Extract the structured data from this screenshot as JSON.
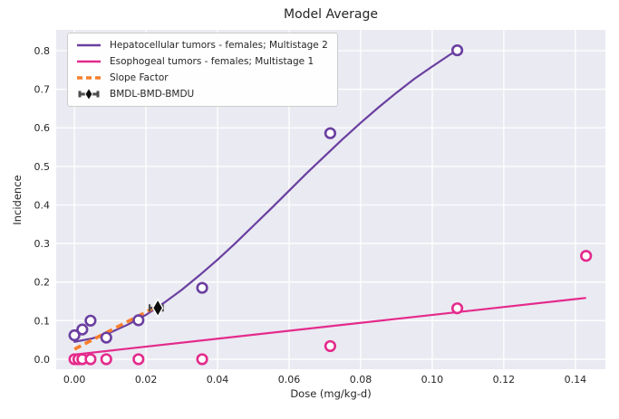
{
  "title": "Model Average",
  "axes": {
    "xlabel": "Dose (mg/kg-d)",
    "ylabel": "Incidence"
  },
  "colors": {
    "hepatocellular": "#6a3fa0",
    "esophogeal": "#e42a8c",
    "slope_factor": "#f87f2c",
    "bmd_diamond": "#0d0d0d",
    "bmd_bar": "#4d4d4d",
    "plot_background": "#eaeaf2",
    "gridline": "#ffffff",
    "text": "#262626"
  },
  "chart_data": {
    "type": "line",
    "title": "Model Average",
    "xlabel": "Dose (mg/kg-d)",
    "ylabel": "Incidence",
    "xlim": [
      -0.0051,
      0.1484
    ],
    "ylim": [
      -0.026,
      0.854
    ],
    "grid": true,
    "legend_position": "upper-left",
    "x_tick_values": [
      0.0,
      0.02,
      0.04,
      0.06,
      0.08,
      0.1,
      0.12,
      0.14
    ],
    "x_tick_labels": [
      "0.00",
      "0.02",
      "0.04",
      "0.06",
      "0.08",
      "0.10",
      "0.12",
      "0.14"
    ],
    "y_tick_values": [
      0.0,
      0.1,
      0.2,
      0.3,
      0.4,
      0.5,
      0.6,
      0.7,
      0.8
    ],
    "y_tick_labels": [
      "0.0",
      "0.1",
      "0.2",
      "0.3",
      "0.4",
      "0.5",
      "0.6",
      "0.7",
      "0.8"
    ],
    "series": [
      {
        "name": "Hepatocellular tumors - females; Multistage 2",
        "color": "#6a3fa0",
        "marker": "open-circle",
        "points": [
          [
            0.0,
            0.062
          ],
          [
            0.0022,
            0.077
          ],
          [
            0.0045,
            0.1
          ],
          [
            0.0089,
            0.056
          ],
          [
            0.0179,
            0.101
          ],
          [
            0.0357,
            0.185
          ],
          [
            0.0715,
            0.586
          ],
          [
            0.107,
            0.801
          ]
        ],
        "curve": [
          [
            0,
            0.045
          ],
          [
            0.005,
            0.054
          ],
          [
            0.01,
            0.069
          ],
          [
            0.015,
            0.09
          ],
          [
            0.02,
            0.115
          ],
          [
            0.025,
            0.146
          ],
          [
            0.03,
            0.18
          ],
          [
            0.035,
            0.218
          ],
          [
            0.04,
            0.258
          ],
          [
            0.045,
            0.301
          ],
          [
            0.05,
            0.346
          ],
          [
            0.055,
            0.391
          ],
          [
            0.06,
            0.437
          ],
          [
            0.065,
            0.483
          ],
          [
            0.07,
            0.527
          ],
          [
            0.075,
            0.571
          ],
          [
            0.08,
            0.613
          ],
          [
            0.085,
            0.653
          ],
          [
            0.09,
            0.691
          ],
          [
            0.095,
            0.727
          ],
          [
            0.1,
            0.759
          ],
          [
            0.105,
            0.79
          ],
          [
            0.107,
            0.801
          ]
        ]
      },
      {
        "name": "Esophogeal tumors - females; Multistage 1",
        "color": "#e42a8c",
        "marker": "open-circle",
        "points": [
          [
            0.0,
            0.0
          ],
          [
            0.0011,
            0.0
          ],
          [
            0.0022,
            0.0
          ],
          [
            0.0045,
            0.0
          ],
          [
            0.0089,
            0.0
          ],
          [
            0.0179,
            0.0
          ],
          [
            0.0357,
            0.0
          ],
          [
            0.0715,
            0.034
          ],
          [
            0.107,
            0.132
          ],
          [
            0.143,
            0.268
          ]
        ],
        "curve": [
          [
            0,
            0.012
          ],
          [
            0.143,
            0.159
          ]
        ]
      }
    ],
    "slope_factor": {
      "name": "Slope Factor",
      "color": "#f87f2c",
      "style": "dashed",
      "from": [
        0.0,
        0.026
      ],
      "to": [
        0.0218,
        0.131
      ]
    },
    "bmd": {
      "name": "BMDL-BMD-BMDU",
      "bmdl": 0.021,
      "bmd": 0.0233,
      "bmdu": 0.0247,
      "incidence": 0.133
    }
  }
}
